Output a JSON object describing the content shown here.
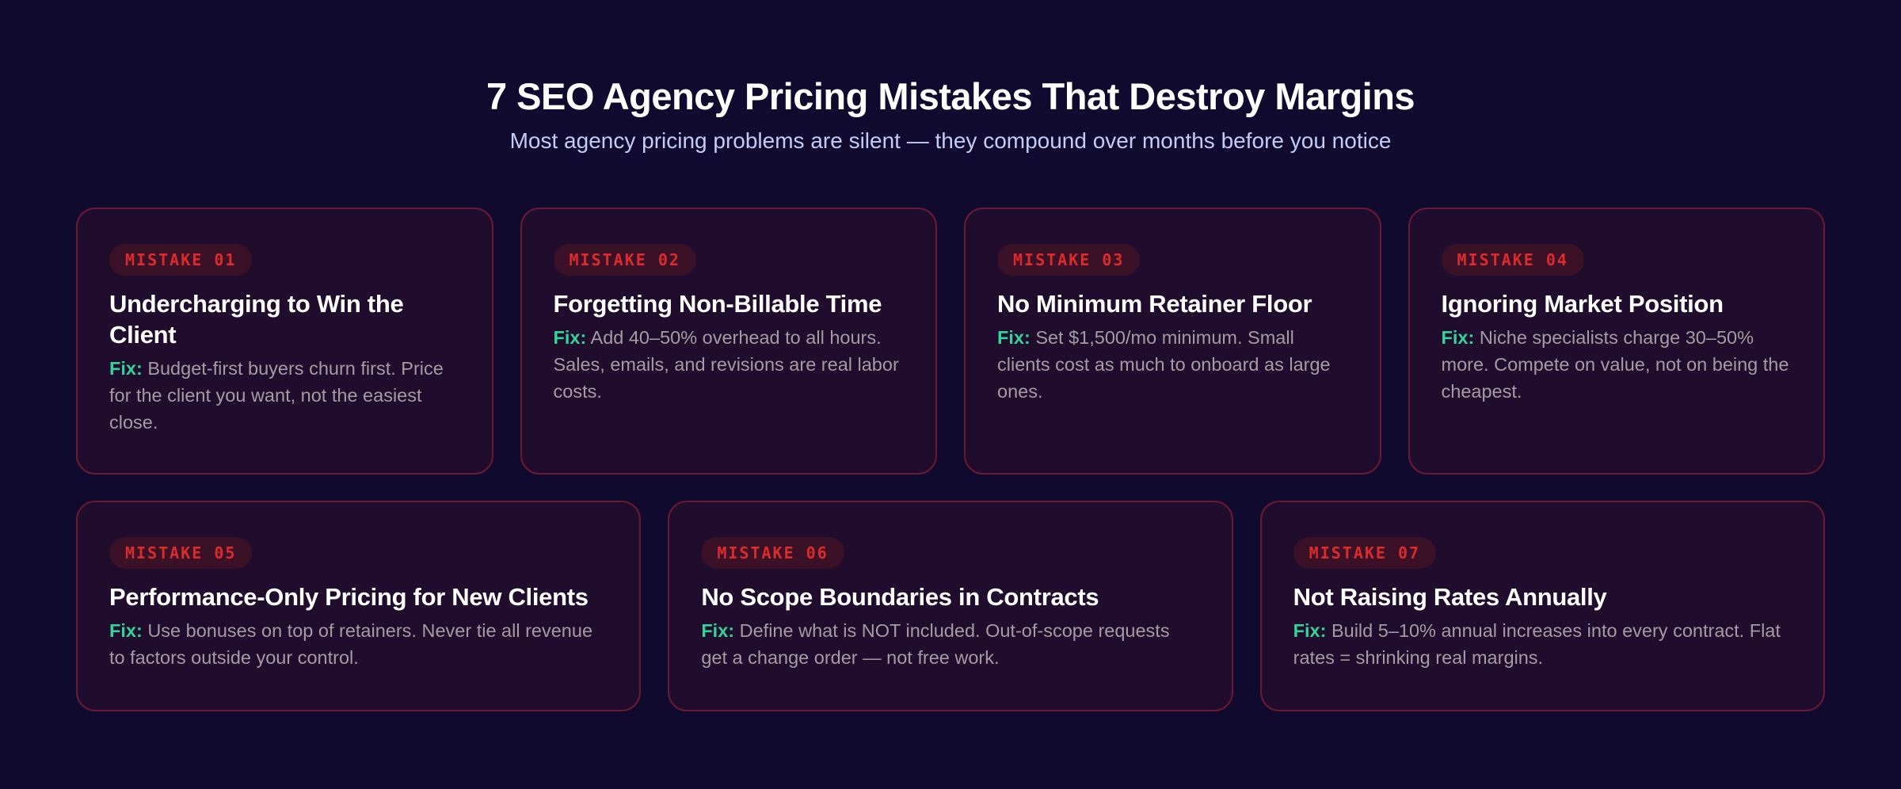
{
  "header": {
    "title": "7 SEO Agency Pricing Mistakes That Destroy Margins",
    "subtitle": "Most agency pricing problems are silent — they compound over months before you notice"
  },
  "colors": {
    "background": "#100a2e",
    "card_background": "#200c2c",
    "card_border": "#6a1a33",
    "badge_text": "#dc2b2b",
    "badge_background": "#3b1128",
    "fix_label": "#34d399",
    "body_text": "#a59ca3",
    "subtitle": "#c5cbf7"
  },
  "fix_label": "Fix:",
  "mistakes": [
    {
      "badge": "MISTAKE 01",
      "title": "Undercharging to Win the Client",
      "fix": "Budget-first buyers churn first. Price for the client you want, not the easiest close."
    },
    {
      "badge": "MISTAKE 02",
      "title": "Forgetting Non-Billable Time",
      "fix": "Add 40–50% overhead to all hours. Sales, emails, and revisions are real labor costs."
    },
    {
      "badge": "MISTAKE 03",
      "title": "No Minimum Retainer Floor",
      "fix": "Set $1,500/mo minimum. Small clients cost as much to onboard as large ones."
    },
    {
      "badge": "MISTAKE 04",
      "title": "Ignoring Market Position",
      "fix": "Niche specialists charge 30–50% more. Compete on value, not on being the cheapest."
    },
    {
      "badge": "MISTAKE 05",
      "title": "Performance-Only Pricing for New Clients",
      "fix": "Use bonuses on top of retainers. Never tie all revenue to factors outside your control."
    },
    {
      "badge": "MISTAKE 06",
      "title": "No Scope Boundaries in Contracts",
      "fix": "Define what is NOT included. Out-of-scope requests get a change order — not free work."
    },
    {
      "badge": "MISTAKE 07",
      "title": "Not Raising Rates Annually",
      "fix": "Build 5–10% annual increases into every contract. Flat rates = shrinking real margins."
    }
  ]
}
